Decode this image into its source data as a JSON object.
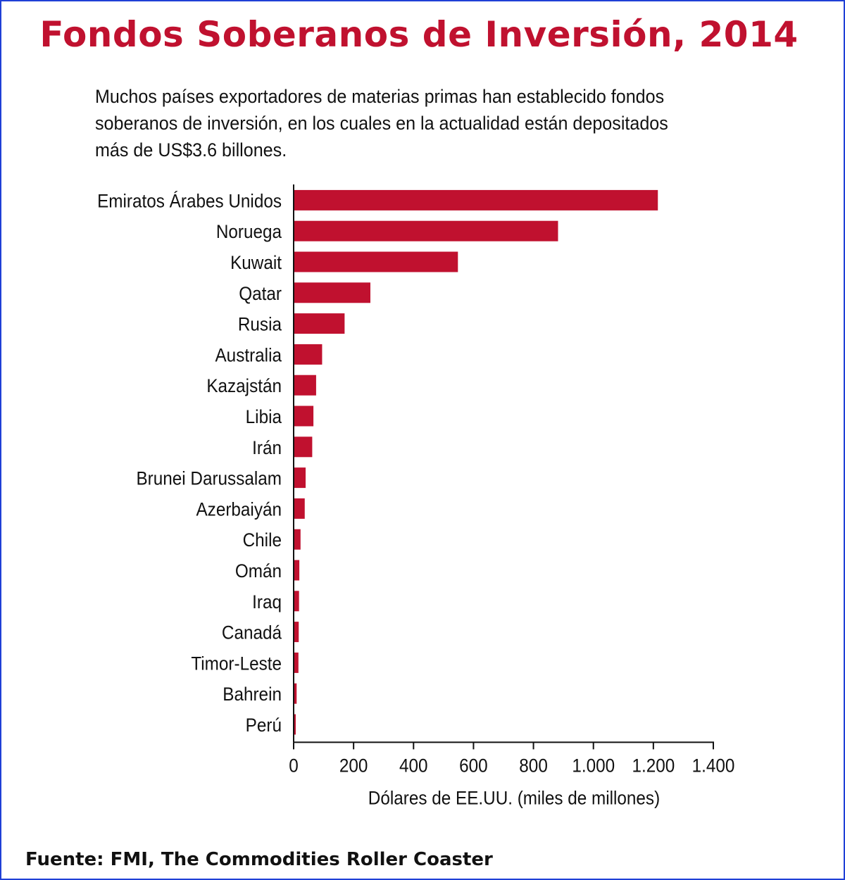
{
  "title": "Fondos Soberanos de Inversión, 2014",
  "subtitle": "Muchos países exportadores de materias primas han establecido fondos soberanos de inversión, en los cuales en la actualidad están depositados más de US$3.6 billones.",
  "source": "Fuente: FMI, The Commodities Roller Coaster",
  "colors": {
    "bar": "#c0112f",
    "title": "#c0112f",
    "frame": "#1f3fd6",
    "axis": "#111111"
  },
  "chart_data": {
    "type": "bar",
    "orientation": "horizontal",
    "categories": [
      "Emiratos Árabes Unidos",
      "Noruega",
      "Kuwait",
      "Qatar",
      "Rusia",
      "Australia",
      "Kazajstán",
      "Libia",
      "Irán",
      "Brunei Darussalam",
      "Azerbaiyán",
      "Chile",
      "Omán",
      "Iraq",
      "Canadá",
      "Timor-Leste",
      "Bahrein",
      "Perú"
    ],
    "values": [
      1215,
      882,
      548,
      256,
      170,
      95,
      75,
      66,
      62,
      40,
      37,
      23,
      19,
      18,
      17,
      16,
      10,
      7
    ],
    "xlabel": "Dólares de EE.UU. (miles de millones)",
    "ylabel": "",
    "xlim": [
      0,
      1400
    ],
    "ticks": [
      0,
      200,
      400,
      600,
      800,
      1000,
      1200,
      1400
    ],
    "tick_labels": [
      "0",
      "200",
      "400",
      "600",
      "800",
      "1.000",
      "1.200",
      "1.400"
    ],
    "grid": false,
    "legend": "none"
  }
}
